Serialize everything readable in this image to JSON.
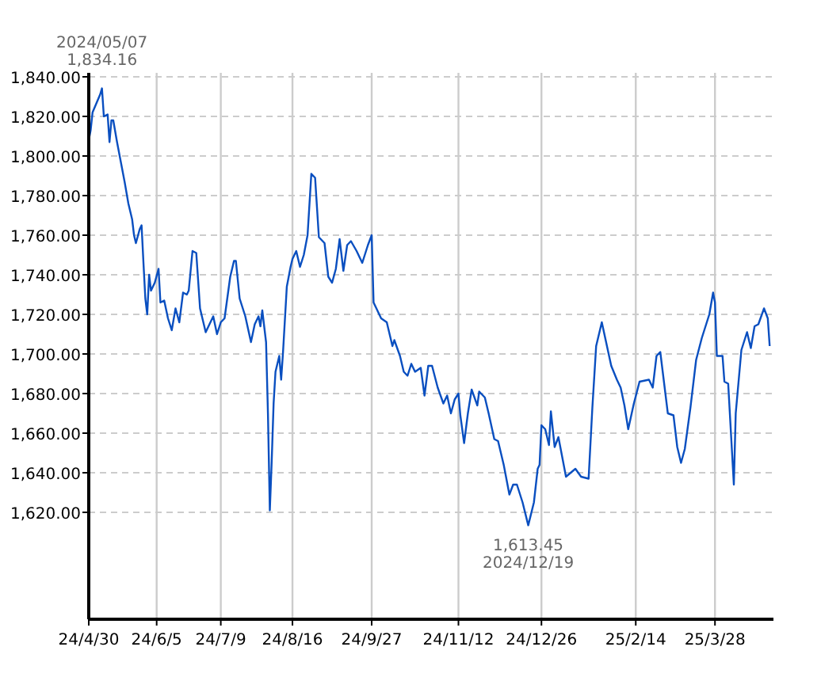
{
  "chart_data": {
    "type": "line",
    "x": [
      "2024-04-30",
      "2024-05-01",
      "2024-05-02",
      "2024-05-06",
      "2024-05-07",
      "2024-05-08",
      "2024-05-10",
      "2024-05-11",
      "2024-05-12",
      "2024-05-13",
      "2024-05-15",
      "2024-05-17",
      "2024-05-19",
      "2024-05-21",
      "2024-05-23",
      "2024-05-24",
      "2024-05-25",
      "2024-05-27",
      "2024-05-28",
      "2024-05-29",
      "2024-05-30",
      "2024-05-31",
      "2024-06-01",
      "2024-06-02",
      "2024-06-04",
      "2024-06-06",
      "2024-06-07",
      "2024-06-09",
      "2024-06-11",
      "2024-06-13",
      "2024-06-15",
      "2024-06-17",
      "2024-06-19",
      "2024-06-21",
      "2024-06-22",
      "2024-06-24",
      "2024-06-26",
      "2024-06-28",
      "2024-06-30",
      "2024-07-01",
      "2024-07-03",
      "2024-07-05",
      "2024-07-07",
      "2024-07-09",
      "2024-07-11",
      "2024-07-14",
      "2024-07-16",
      "2024-07-17",
      "2024-07-19",
      "2024-07-22",
      "2024-07-25",
      "2024-07-27",
      "2024-07-29",
      "2024-07-30",
      "2024-07-31",
      "2024-08-02",
      "2024-08-03",
      "2024-08-04",
      "2024-08-05",
      "2024-08-06",
      "2024-08-07",
      "2024-08-09",
      "2024-08-10",
      "2024-08-11",
      "2024-08-13",
      "2024-08-15",
      "2024-08-16",
      "2024-08-18",
      "2024-08-20",
      "2024-08-22",
      "2024-08-24",
      "2024-08-26",
      "2024-08-28",
      "2024-08-30",
      "2024-09-02",
      "2024-09-04",
      "2024-09-06",
      "2024-09-08",
      "2024-09-10",
      "2024-09-12",
      "2024-09-14",
      "2024-09-16",
      "2024-09-19",
      "2024-09-22",
      "2024-09-25",
      "2024-09-27",
      "2024-09-28",
      "2024-10-02",
      "2024-10-05",
      "2024-10-08",
      "2024-10-09",
      "2024-10-12",
      "2024-10-14",
      "2024-10-16",
      "2024-10-18",
      "2024-10-20",
      "2024-10-23",
      "2024-10-25",
      "2024-10-27",
      "2024-10-29",
      "2024-11-01",
      "2024-11-04",
      "2024-11-06",
      "2024-11-08",
      "2024-11-10",
      "2024-11-12",
      "2024-11-13",
      "2024-11-15",
      "2024-11-17",
      "2024-11-19",
      "2024-11-22",
      "2024-11-23",
      "2024-11-26",
      "2024-11-28",
      "2024-12-01",
      "2024-12-03",
      "2024-12-06",
      "2024-12-09",
      "2024-12-11",
      "2024-12-13",
      "2024-12-16",
      "2024-12-19",
      "2024-12-22",
      "2024-12-24",
      "2024-12-25",
      "2024-12-26",
      "2024-12-28",
      "2024-12-30",
      "2024-12-31",
      "2025-01-02",
      "2025-01-04",
      "2025-01-08",
      "2025-01-13",
      "2025-01-16",
      "2025-01-20",
      "2025-01-22",
      "2025-01-24",
      "2025-01-27",
      "2025-02-01",
      "2025-02-04",
      "2025-02-06",
      "2025-02-08",
      "2025-02-10",
      "2025-02-13",
      "2025-02-16",
      "2025-02-21",
      "2025-02-23",
      "2025-02-25",
      "2025-02-27",
      "2025-03-03",
      "2025-03-06",
      "2025-03-08",
      "2025-03-10",
      "2025-03-12",
      "2025-03-15",
      "2025-03-18",
      "2025-03-21",
      "2025-03-25",
      "2025-03-27",
      "2025-03-28",
      "2025-03-29",
      "2025-04-01",
      "2025-04-02",
      "2025-04-04",
      "2025-04-07",
      "2025-04-08",
      "2025-04-11",
      "2025-04-14",
      "2025-04-16",
      "2025-04-18",
      "2025-04-20",
      "2025-04-23",
      "2025-04-25",
      "2025-04-26"
    ],
    "series": [
      {
        "color": "#0a4fc0",
        "values": [
          1808,
          1813,
          1822,
          1831,
          1834.16,
          1820,
          1821,
          1807,
          1818,
          1818,
          1807,
          1797,
          1787,
          1776,
          1768,
          1760,
          1756,
          1763,
          1765,
          1746,
          1728,
          1720,
          1740,
          1732,
          1736,
          1743,
          1726,
          1727,
          1718,
          1712,
          1723,
          1716,
          1731,
          1730,
          1732,
          1752,
          1751,
          1723,
          1715,
          1711,
          1715,
          1719,
          1710,
          1716,
          1718,
          1739,
          1747,
          1747,
          1728,
          1719,
          1706,
          1715,
          1719,
          1714,
          1722,
          1706,
          1670,
          1621,
          1646,
          1675,
          1691,
          1699,
          1687,
          1701,
          1734,
          1744,
          1748,
          1752,
          1744,
          1750,
          1760,
          1791,
          1789,
          1759,
          1756,
          1739,
          1736,
          1743,
          1758,
          1742,
          1755,
          1757,
          1752,
          1746,
          1755,
          1760,
          1726,
          1718,
          1716,
          1704,
          1707,
          1699,
          1691,
          1689,
          1695,
          1691,
          1693,
          1679,
          1694,
          1694,
          1683,
          1675,
          1679,
          1670,
          1677,
          1680,
          1669,
          1655,
          1670,
          1682,
          1674,
          1681,
          1678,
          1670,
          1657,
          1656,
          1644,
          1629,
          1634,
          1634,
          1625,
          1613.45,
          1625,
          1642,
          1644,
          1664,
          1662,
          1654,
          1671,
          1653,
          1658,
          1638,
          1642,
          1638,
          1637,
          1673,
          1704,
          1716,
          1694,
          1687,
          1683,
          1674,
          1662,
          1675,
          1686,
          1687,
          1683,
          1699,
          1701,
          1670,
          1669,
          1653,
          1645,
          1652,
          1673,
          1697,
          1708,
          1720,
          1731,
          1726,
          1699,
          1699,
          1686,
          1685,
          1634,
          1670,
          1702,
          1711,
          1703,
          1714,
          1715,
          1723,
          1718,
          1704
        ]
      }
    ],
    "xlim": [
      "2024-04-30",
      "2025-04-28"
    ],
    "xticks": [
      {
        "value": "2024-04-30",
        "label": "24/4/30"
      },
      {
        "value": "2024-06-05",
        "label": "24/6/5"
      },
      {
        "value": "2024-07-09",
        "label": "24/7/9"
      },
      {
        "value": "2024-08-16",
        "label": "24/8/16"
      },
      {
        "value": "2024-09-27",
        "label": "24/9/27"
      },
      {
        "value": "2024-11-12",
        "label": "24/11/12"
      },
      {
        "value": "2024-12-26",
        "label": "24/12/26"
      },
      {
        "value": "2025-02-14",
        "label": "25/2/14"
      },
      {
        "value": "2025-03-28",
        "label": "25/3/28"
      }
    ],
    "ylim": [
      1566,
      1842
    ],
    "yticks": [
      {
        "value": 1620,
        "label": "1,620.00"
      },
      {
        "value": 1640,
        "label": "1,640.00"
      },
      {
        "value": 1660,
        "label": "1,660.00"
      },
      {
        "value": 1680,
        "label": "1,680.00"
      },
      {
        "value": 1700,
        "label": "1,700.00"
      },
      {
        "value": 1720,
        "label": "1,720.00"
      },
      {
        "value": 1740,
        "label": "1,740.00"
      },
      {
        "value": 1760,
        "label": "1,760.00"
      },
      {
        "value": 1780,
        "label": "1,780.00"
      },
      {
        "value": 1800,
        "label": "1,800.00"
      },
      {
        "value": 1820,
        "label": "1,820.00"
      },
      {
        "value": 1840,
        "label": "1,840.00"
      }
    ],
    "grid": true,
    "annotations": [
      {
        "text": "2024/05/07",
        "x": "2024-05-07",
        "y": 1834.16
      },
      {
        "text": "1,834.16",
        "x": "2024-05-07",
        "y": 1834.16
      },
      {
        "text": "1,613.45",
        "x": "2024-12-19",
        "y": 1613.45
      },
      {
        "text": "2024/12/19",
        "x": "2024-12-19",
        "y": 1613.45
      }
    ]
  }
}
